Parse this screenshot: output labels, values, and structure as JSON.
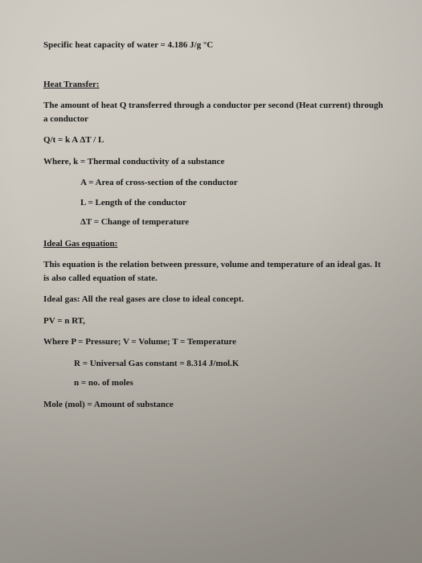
{
  "specific_heat": "Specific heat capacity of water = 4.186 J/g °C",
  "heat_transfer": {
    "title": "Heat Transfer:",
    "desc": "The amount of heat Q transferred through a conductor per second (Heat current) through a conductor",
    "formula": "Q/t = k A ΔT / L",
    "where": "Where, k = Thermal conductivity of a substance",
    "defs": [
      "A = Area of cross-section of the conductor",
      "L = Length of the conductor",
      "ΔT = Change of temperature"
    ]
  },
  "ideal_gas": {
    "title": "Ideal Gas equation:",
    "desc": "This equation is the relation between pressure, volume and temperature of an ideal gas. It is also called equation of state.",
    "note": "Ideal gas: All the real gases are close to ideal concept.",
    "formula": "PV = n RT,",
    "where": "Where P = Pressure; V = Volume; T = Temperature",
    "defs": [
      "R = Universal Gas constant = 8.314 J/mol.K",
      "n = no. of moles"
    ],
    "mole": "Mole (mol) = Amount of substance"
  },
  "colors": {
    "text": "#1a1a1a",
    "bg_light": "#d4d0c8",
    "bg_dark": "#9c9890"
  }
}
